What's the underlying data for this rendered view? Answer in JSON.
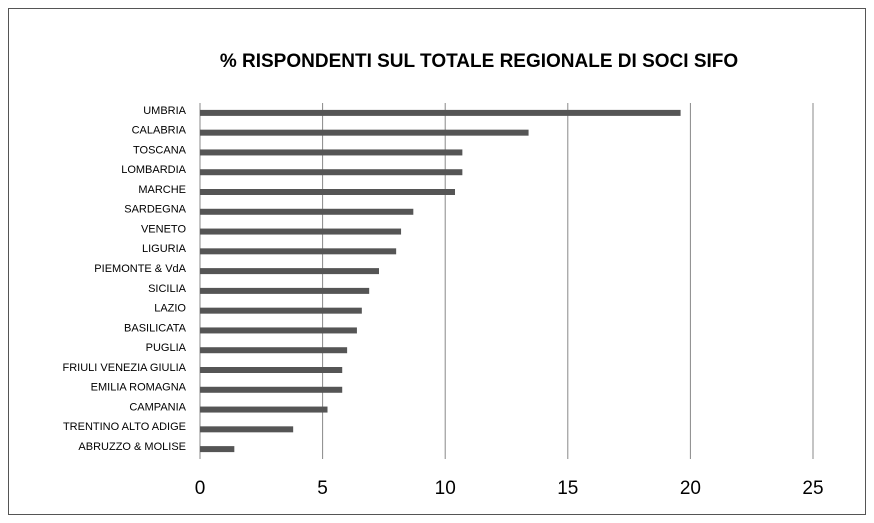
{
  "chart_data": {
    "type": "hbar",
    "title": "% RISPONDENTI SUL TOTALE REGIONALE DI SOCI SIFO",
    "categories": [
      "UMBRIA",
      "CALABRIA",
      "TOSCANA",
      "LOMBARDIA",
      "MARCHE",
      "SARDEGNA",
      "VENETO",
      "LIGURIA",
      "PIEMONTE & VdA",
      "SICILIA",
      "LAZIO",
      "BASILICATA",
      "PUGLIA",
      "FRIULI VENEZIA GIULIA",
      "EMILIA ROMAGNA",
      "CAMPANIA",
      "TRENTINO ALTO ADIGE",
      "ABRUZZO & MOLISE"
    ],
    "values": [
      19.6,
      13.4,
      10.7,
      10.7,
      10.4,
      8.7,
      8.2,
      8.0,
      7.3,
      6.9,
      6.6,
      6.4,
      6.0,
      5.8,
      5.8,
      5.2,
      3.8,
      1.4
    ],
    "color": "#555555",
    "xlim": [
      0,
      25
    ],
    "xticks": [
      0,
      5,
      10,
      15,
      20,
      25
    ],
    "grid": true
  }
}
